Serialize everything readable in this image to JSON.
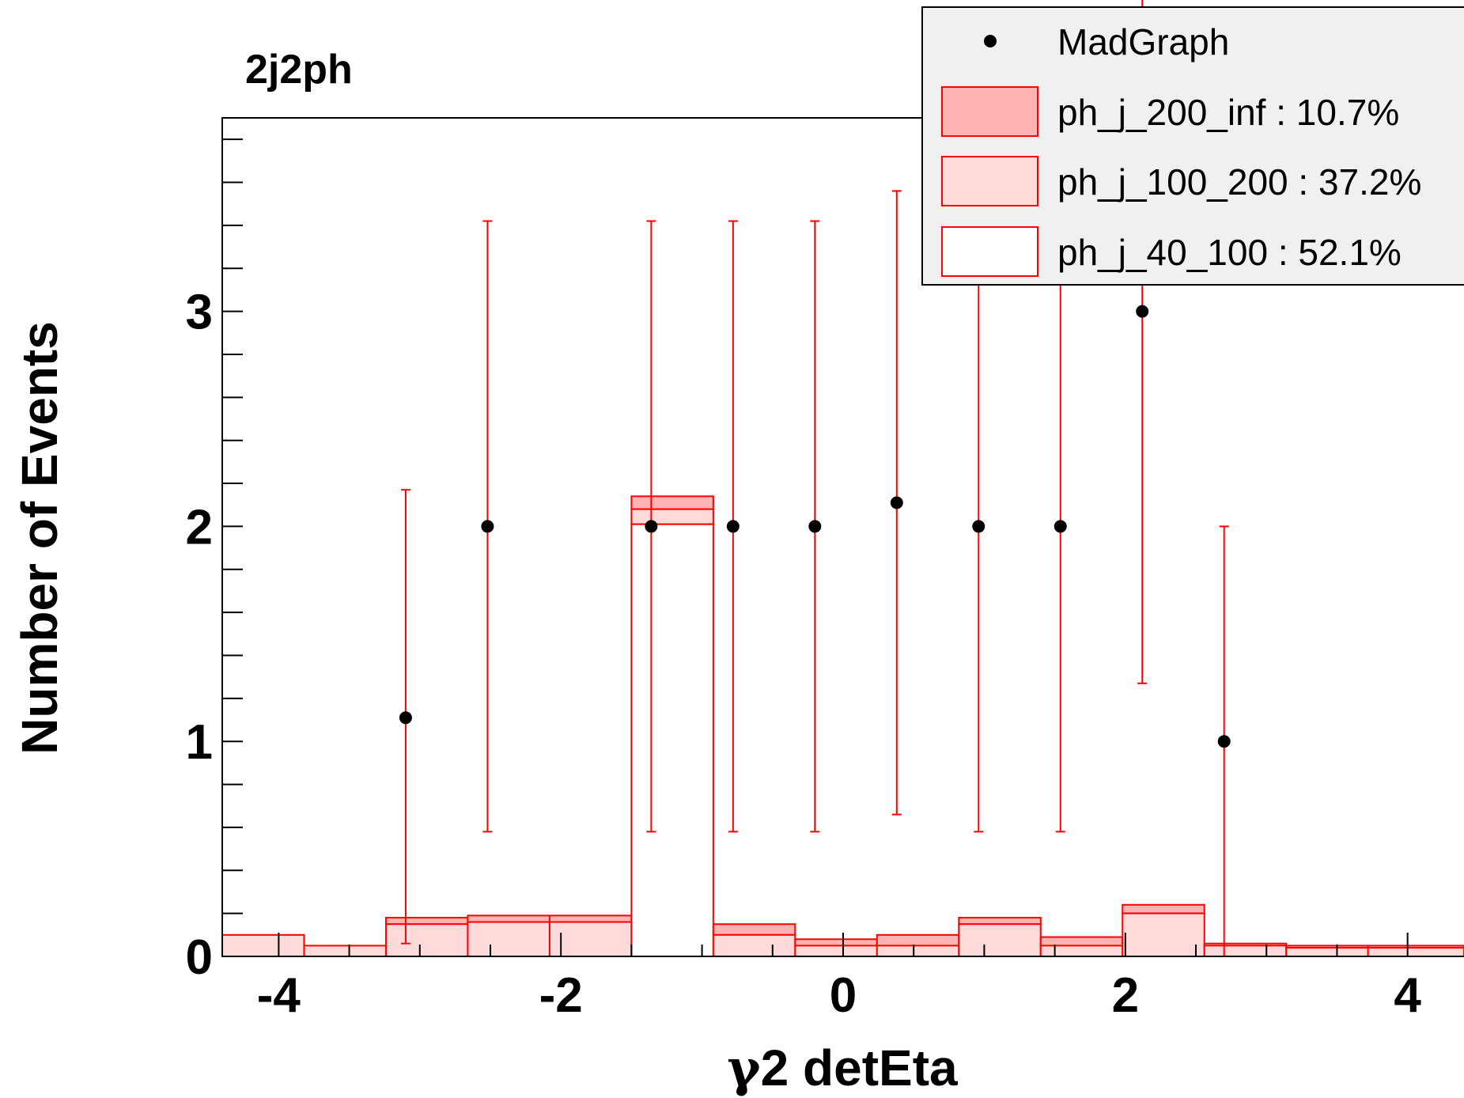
{
  "chart_data": {
    "type": "bar",
    "title": "2j2ph",
    "xlabel_symbol": "γ",
    "xlabel_rest": "2 detEta",
    "ylabel": "Number of Events",
    "xlim": [
      -4.4,
      4.4
    ],
    "ylim": [
      0,
      3.9
    ],
    "x_ticks": [
      "-4",
      "-2",
      "0",
      "2",
      "4"
    ],
    "y_ticks": [
      "0",
      "1",
      "2",
      "3"
    ],
    "bin_edges": [
      -4.4,
      -3.82,
      -3.24,
      -2.66,
      -2.08,
      -1.5,
      -0.92,
      -0.34,
      0.24,
      0.82,
      1.4,
      1.98,
      2.56,
      3.14,
      3.72,
      4.4
    ],
    "series": [
      {
        "name": "ph_j_40_100 : 52.1%",
        "values": [
          0.0,
          0.0,
          0.0,
          0.0,
          0.0,
          2.01,
          0.0,
          0.0,
          0.0,
          0.0,
          0.0,
          0.0,
          0.0,
          0.0,
          0.0
        ]
      },
      {
        "name": "ph_j_100_200 : 37.2%",
        "values": [
          0.1,
          0.05,
          0.15,
          0.16,
          0.16,
          0.07,
          0.1,
          0.05,
          0.05,
          0.15,
          0.05,
          0.2,
          0.05,
          0.04,
          0.04
        ]
      },
      {
        "name": "ph_j_200_inf : 10.7%",
        "values": [
          0.0,
          0.0,
          0.03,
          0.03,
          0.03,
          0.06,
          0.05,
          0.03,
          0.05,
          0.03,
          0.04,
          0.04,
          0.01,
          0.01,
          0.01
        ]
      }
    ],
    "points": {
      "name": "MadGraph",
      "x": [
        -3.1,
        -2.52,
        -1.36,
        -0.78,
        -0.2,
        0.38,
        0.96,
        1.54,
        2.12,
        2.7
      ],
      "y": [
        1.11,
        2.0,
        2.0,
        2.0,
        2.0,
        2.11,
        2.0,
        2.0,
        3.0,
        1.0
      ],
      "err_low": [
        1.05,
        1.42,
        1.42,
        1.42,
        1.42,
        1.45,
        1.42,
        1.42,
        1.73,
        1.0
      ],
      "err_high": [
        1.06,
        1.42,
        1.42,
        1.42,
        1.42,
        1.45,
        1.42,
        1.42,
        1.73,
        1.0
      ]
    },
    "legend": {
      "placement": "top-right",
      "entries": [
        "MadGraph",
        "ph_j_200_inf : 10.7%",
        "ph_j_100_200 : 37.2%",
        "ph_j_40_100 : 52.1%"
      ]
    },
    "colors": {
      "line": "#ff0000",
      "fill_200_inf": "#ffb3b3",
      "fill_100_200": "#ffdada",
      "fill_40_100": "#ffffff",
      "points": "#000000",
      "legend_bg": "#f0f0f0"
    }
  }
}
